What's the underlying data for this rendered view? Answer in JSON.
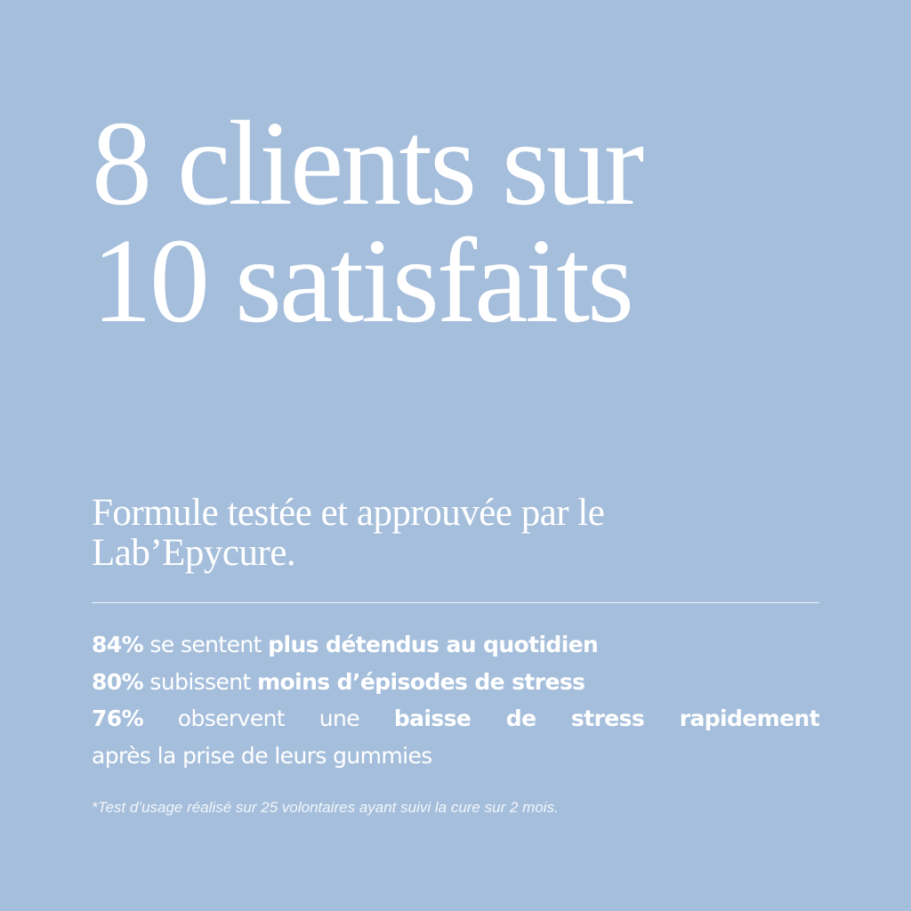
{
  "headline": {
    "lines": [
      "8 clients sur",
      "10 satisfaits"
    ]
  },
  "subtitle": {
    "lines": [
      "Formule testée et approuvée par le",
      "Lab’Epycure."
    ]
  },
  "stats": {
    "lines": [
      {
        "parts": [
          {
            "text": "84%",
            "bold": true
          },
          {
            "text": " se sentent ",
            "bold": false
          },
          {
            "text": "plus détendus au quotidien",
            "bold": true
          }
        ]
      },
      {
        "parts": [
          {
            "text": "80%",
            "bold": true
          },
          {
            "text": " subissent ",
            "bold": false
          },
          {
            "text": "moins d’épisodes de stress",
            "bold": true
          }
        ]
      },
      {
        "parts": [
          {
            "text": "76%",
            "bold": true
          },
          {
            "text": " observent une ",
            "bold": false
          },
          {
            "text": "baisse de stress rapidement",
            "bold": true
          }
        ]
      },
      {
        "parts": [
          {
            "text": "après la prise de leurs gummies",
            "bold": false
          }
        ]
      }
    ]
  },
  "footnote": "*Test d’usage réalisé sur 25 volontaires ayant suivi la cure sur 2 mois."
}
